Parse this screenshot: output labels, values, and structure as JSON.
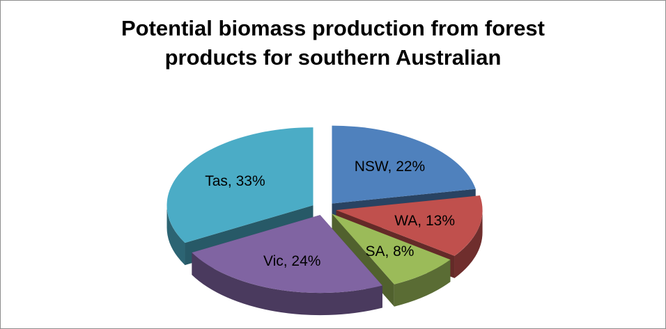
{
  "chart_data": {
    "type": "pie",
    "style": "3d-exploded",
    "title_lines": [
      "Potential biomass production from forest",
      "products for southern Australian"
    ],
    "legend": "none",
    "categories": [
      "NSW",
      "WA",
      "SA",
      "Vic",
      "Tas"
    ],
    "values": [
      22,
      13,
      8,
      24,
      33
    ],
    "labels": [
      "NSW, 22%",
      "WA, 13%",
      "SA, 8%",
      "Vic, 24%",
      "Tas, 33%"
    ],
    "colors": [
      "#4F81BD",
      "#C0504D",
      "#9BBB59",
      "#8064A2",
      "#4BACC6"
    ]
  }
}
